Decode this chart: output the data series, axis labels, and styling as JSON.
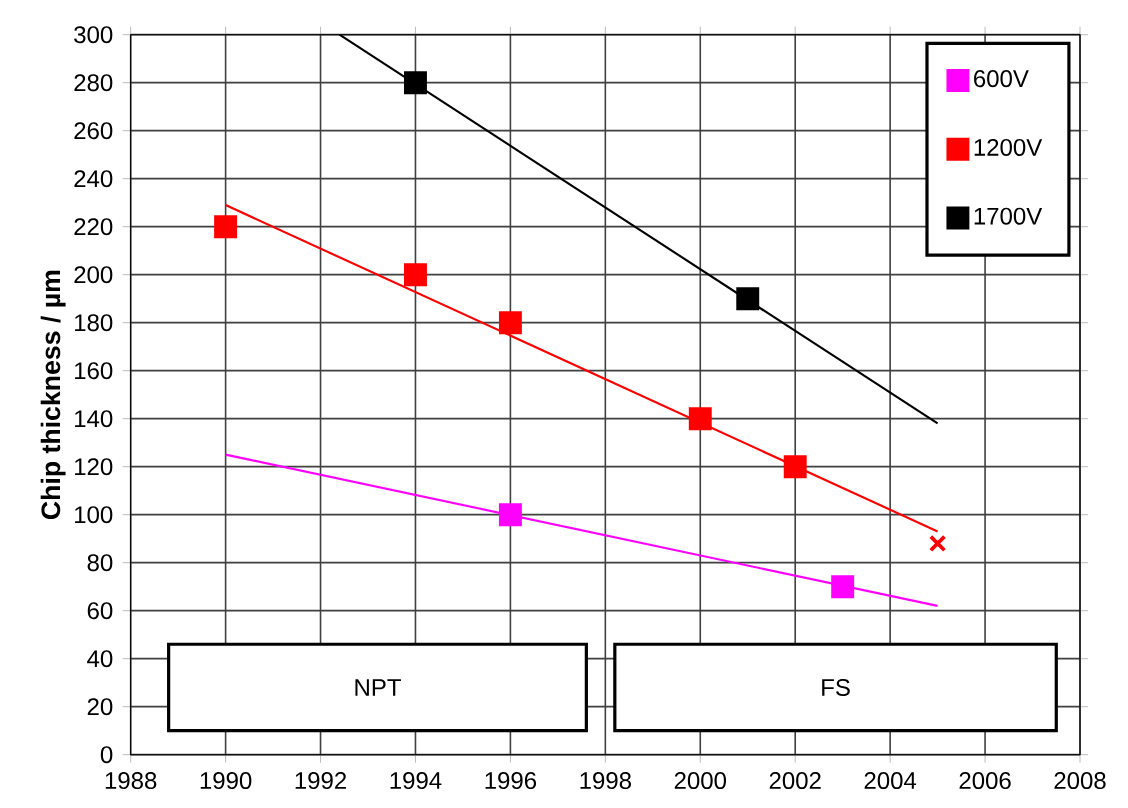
{
  "chart_data": {
    "type": "scatter",
    "ylabel": "Chip thickness / µm",
    "xlim": [
      1988,
      2008
    ],
    "xticks": [
      1988,
      1990,
      1992,
      1994,
      1996,
      1998,
      2000,
      2002,
      2004,
      2006,
      2008
    ],
    "ylim": [
      0,
      300
    ],
    "yticks": [
      0,
      20,
      40,
      60,
      80,
      100,
      120,
      140,
      160,
      180,
      200,
      220,
      240,
      260,
      280,
      300
    ],
    "grid": true,
    "legend": "top right",
    "series": [
      {
        "name": "600V",
        "color": "#ff00ff",
        "marker": "square",
        "x": [
          1996,
          2003
        ],
        "values": [
          100,
          70
        ]
      },
      {
        "name": "1200V",
        "color": "#ff0000",
        "marker": "square",
        "x": [
          1990,
          1994,
          1996,
          2000,
          2002
        ],
        "values": [
          220,
          200,
          180,
          140,
          120
        ]
      },
      {
        "name": "1700V",
        "color": "#000000",
        "marker": "square",
        "x": [
          1994,
          2001
        ],
        "values": [
          280,
          190
        ]
      },
      {
        "color": "#ff0000",
        "marker": "cross",
        "x": [
          2005
        ],
        "values": [
          88
        ]
      },
      {
        "color": "#ff00ff",
        "type": "line",
        "marker": "none",
        "x": [
          1990,
          2005
        ],
        "values": [
          125,
          62
        ]
      },
      {
        "color": "#ff0000",
        "type": "line",
        "marker": "none",
        "x": [
          1990,
          2005
        ],
        "values": [
          229,
          93
        ]
      },
      {
        "color": "#000000",
        "type": "line",
        "marker": "none",
        "x": [
          1992.4,
          2005
        ],
        "values": [
          300,
          138
        ]
      }
    ],
    "bands": [
      {
        "axis": "x",
        "from": 1988.8,
        "to": 1997.6,
        "label": "NPT",
        "color": "#ffffff"
      },
      {
        "axis": "x",
        "from": 1998.2,
        "to": 2007.5,
        "label": "FS",
        "color": "#ffffff"
      }
    ]
  }
}
